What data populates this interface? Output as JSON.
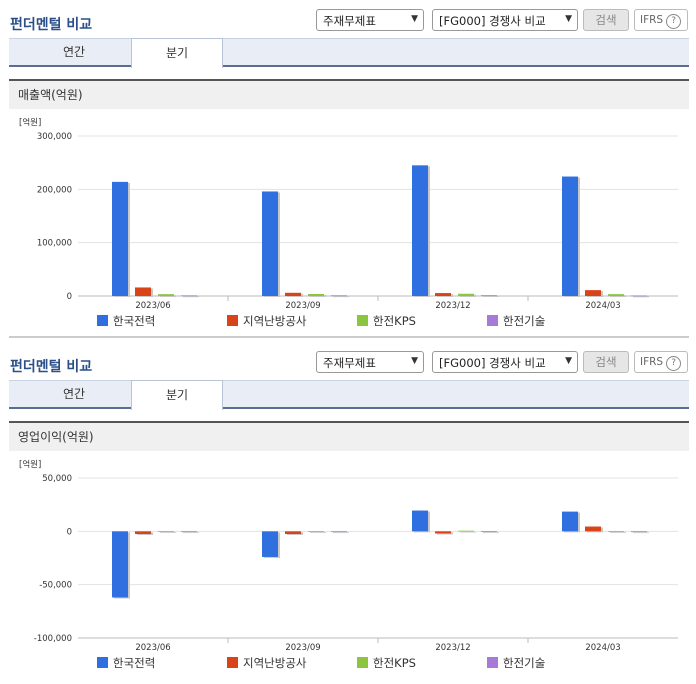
{
  "sections": [
    {
      "title": "펀더멘털 비교",
      "select_statement": "주재무제표",
      "select_compare": "[FG000] 경쟁사 비교",
      "search_label": "검색",
      "ifrs_label": "IFRS",
      "help_label": "?",
      "tabs": [
        "연간",
        "분기"
      ],
      "active_tab": "분기",
      "chart_heading": "매출액(억원)",
      "legend": [
        "한국전력",
        "지역난방공사",
        "한전KPS",
        "한전기술"
      ]
    },
    {
      "title": "펀더멘털 비교",
      "select_statement": "주재무제표",
      "select_compare": "[FG000] 경쟁사 비교",
      "search_label": "검색",
      "ifrs_label": "IFRS",
      "help_label": "?",
      "tabs": [
        "연간",
        "분기"
      ],
      "active_tab": "분기",
      "chart_heading": "영업이익(억원)",
      "legend": [
        "한국전력",
        "지역난방공사",
        "한전KPS",
        "한전기술"
      ]
    }
  ],
  "colors": {
    "한국전력": "#2f6fe0",
    "지역난방공사": "#d84318",
    "한전KPS": "#8cc63e",
    "한전기술": "#a77ad8"
  },
  "chart_data": [
    {
      "type": "bar",
      "unit_label": "[억원]",
      "categories": [
        "2023/06",
        "2023/09",
        "2023/12",
        "2024/03"
      ],
      "ylim": [
        0,
        300000
      ],
      "yticks": [
        "0",
        "100,000",
        "200,000",
        "300,000"
      ],
      "grid": true,
      "legend_position": "bottom",
      "series": [
        {
          "name": "한국전력",
          "values": [
            214000,
            196000,
            245000,
            224000
          ]
        },
        {
          "name": "지역난방공사",
          "values": [
            16000,
            6000,
            5500,
            11000
          ]
        },
        {
          "name": "한전KPS",
          "values": [
            3500,
            3800,
            4200,
            3500
          ]
        },
        {
          "name": "한전기술",
          "values": [
            1200,
            1300,
            1500,
            1000
          ]
        }
      ]
    },
    {
      "type": "bar",
      "unit_label": "[억원]",
      "categories": [
        "2023/06",
        "2023/09",
        "2023/12",
        "2024/03"
      ],
      "ylim": [
        -100000,
        50000
      ],
      "yticks": [
        "-100,000",
        "-50,000",
        "0",
        "50,000"
      ],
      "grid": true,
      "legend_position": "bottom",
      "series": [
        {
          "name": "한국전력",
          "values": [
            -62000,
            -24000,
            19500,
            18500
          ]
        },
        {
          "name": "지역난방공사",
          "values": [
            -2500,
            -2500,
            -2000,
            4500
          ]
        },
        {
          "name": "한전KPS",
          "values": [
            300,
            250,
            600,
            200
          ]
        },
        {
          "name": "한전기술",
          "values": [
            50,
            30,
            80,
            20
          ]
        }
      ]
    }
  ]
}
